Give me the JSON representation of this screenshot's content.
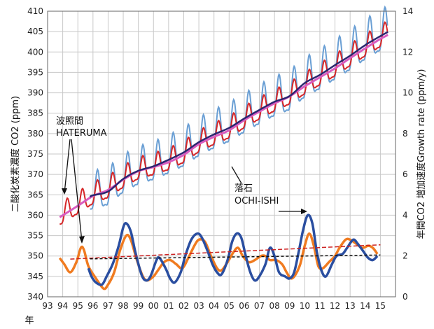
{
  "chart_data": {
    "type": "line",
    "title": "",
    "left_axis": {
      "label": "二酸化炭素濃度 CO2 (ppm)",
      "min": 340,
      "max": 410,
      "step": 5,
      "ticks": [
        "340",
        "345",
        "350",
        "355",
        "360",
        "365",
        "370",
        "375",
        "380",
        "385",
        "390",
        "395",
        "400",
        "405",
        "410"
      ]
    },
    "right_axis": {
      "label": "年間CO2 増加速度Growth rate (ppm/y)",
      "min": 0,
      "max": 14,
      "step": 2,
      "ticks": [
        "0",
        "2",
        "4",
        "6",
        "8",
        "10",
        "12",
        "14"
      ]
    },
    "x_axis": {
      "label": "年",
      "min": 1993,
      "max": 2016,
      "tick_years": [
        1993,
        1994,
        1995,
        1996,
        1997,
        1998,
        1999,
        2000,
        2001,
        2002,
        2003,
        2004,
        2005,
        2006,
        2007,
        2008,
        2009,
        2010,
        2011,
        2012,
        2013,
        2014,
        2015
      ],
      "tick_labels": [
        "93",
        "94",
        "95",
        "96",
        "97",
        "98",
        "99",
        "00",
        "01",
        "02",
        "03",
        "04",
        "05",
        "06",
        "07",
        "08",
        "09",
        "10",
        "11",
        "12",
        "13",
        "14",
        "15"
      ]
    },
    "grid": true,
    "colors": {
      "hateruma_monthly": "#d62728",
      "hateruma_trend": "#d85cc0",
      "ochiishi_monthly": "#6a9fd4",
      "ochiishi_trend": "#2b2670",
      "hateruma_growth": "#f07b20",
      "ochiishi_growth": "#2a4ea0",
      "trend_hateruma": "#cc2222",
      "trend_ochiishi": "#111111"
    },
    "annotations": [
      {
        "id": "hateruma",
        "lines": [
          "波照間",
          "HATERUMA"
        ]
      },
      {
        "id": "ochiishi",
        "lines": [
          "落石",
          "OCHI-ISHI"
        ]
      }
    ],
    "series": [
      {
        "name": "HATERUMA monthly CO2",
        "axis": "left",
        "color": "#d62728",
        "trend_points": [
          [
            1993.8,
            359.5
          ],
          [
            1995,
            362.3
          ],
          [
            1996,
            364.7
          ],
          [
            1997,
            366.2
          ],
          [
            1998,
            368.7
          ],
          [
            1999,
            370.8
          ],
          [
            2000,
            371.8
          ],
          [
            2001,
            373.0
          ],
          [
            2002,
            374.8
          ],
          [
            2003,
            377.4
          ],
          [
            2004,
            379.2
          ],
          [
            2005,
            380.8
          ],
          [
            2006,
            383.3
          ],
          [
            2007,
            385.4
          ],
          [
            2008,
            387.4
          ],
          [
            2009,
            389.1
          ],
          [
            2010,
            391.6
          ],
          [
            2011,
            393.8
          ],
          [
            2012,
            396.0
          ],
          [
            2013,
            398.5
          ],
          [
            2014,
            400.9
          ],
          [
            2015,
            403.2
          ],
          [
            2015.5,
            404.2
          ]
        ],
        "seasonal_amplitude": [
          [
            1993.8,
            3.5
          ],
          [
            2015.5,
            3.5
          ]
        ],
        "peak_phase": 0.3
      },
      {
        "name": "HATERUMA trend",
        "axis": "left",
        "color": "#d85cc0",
        "points": [
          [
            1993.8,
            359.5
          ],
          [
            1995,
            362.3
          ],
          [
            1996,
            364.7
          ],
          [
            1997,
            366.2
          ],
          [
            1998,
            368.7
          ],
          [
            1999,
            370.8
          ],
          [
            2000,
            371.8
          ],
          [
            2001,
            373.0
          ],
          [
            2002,
            374.8
          ],
          [
            2003,
            377.4
          ],
          [
            2004,
            379.2
          ],
          [
            2005,
            380.8
          ],
          [
            2006,
            383.3
          ],
          [
            2007,
            385.4
          ],
          [
            2008,
            387.4
          ],
          [
            2009,
            389.1
          ],
          [
            2010,
            391.6
          ],
          [
            2011,
            393.8
          ],
          [
            2012,
            396.0
          ],
          [
            2013,
            398.5
          ],
          [
            2014,
            400.9
          ],
          [
            2015,
            403.2
          ],
          [
            2015.5,
            404.2
          ]
        ]
      },
      {
        "name": "OCHI-ISHI monthly CO2",
        "axis": "left",
        "color": "#6a9fd4",
        "trend_points": [
          [
            1995.8,
            364.5
          ],
          [
            1996,
            364.9
          ],
          [
            1997,
            365.8
          ],
          [
            1998,
            368.9
          ],
          [
            1999,
            370.9
          ],
          [
            2000,
            372.0
          ],
          [
            2001,
            373.6
          ],
          [
            2002,
            375.4
          ],
          [
            2003,
            377.9
          ],
          [
            2004,
            379.8
          ],
          [
            2005,
            381.4
          ],
          [
            2006,
            383.7
          ],
          [
            2007,
            385.8
          ],
          [
            2008,
            387.8
          ],
          [
            2009,
            389.2
          ],
          [
            2010,
            392.4
          ],
          [
            2011,
            394.4
          ],
          [
            2012,
            396.8
          ],
          [
            2013,
            399.1
          ],
          [
            2014,
            401.7
          ],
          [
            2015,
            403.9
          ],
          [
            2015.5,
            404.9
          ]
        ],
        "seasonal_amplitude": [
          [
            1995.8,
            6.0
          ],
          [
            2015.5,
            6.5
          ]
        ],
        "peak_phase": 0.3
      },
      {
        "name": "OCHI-ISHI trend",
        "axis": "left",
        "color": "#2b2670",
        "points": [
          [
            1995.8,
            364.5
          ],
          [
            1996,
            364.9
          ],
          [
            1997,
            365.8
          ],
          [
            1998,
            368.9
          ],
          [
            1999,
            370.9
          ],
          [
            2000,
            372.0
          ],
          [
            2001,
            373.6
          ],
          [
            2002,
            375.4
          ],
          [
            2003,
            377.9
          ],
          [
            2004,
            379.8
          ],
          [
            2005,
            381.4
          ],
          [
            2006,
            383.7
          ],
          [
            2007,
            385.8
          ],
          [
            2008,
            387.8
          ],
          [
            2009,
            389.2
          ],
          [
            2010,
            392.4
          ],
          [
            2011,
            394.4
          ],
          [
            2012,
            396.8
          ],
          [
            2013,
            399.1
          ],
          [
            2014,
            401.7
          ],
          [
            2015,
            403.9
          ],
          [
            2015.5,
            404.9
          ]
        ]
      },
      {
        "name": "HATERUMA growth rate",
        "axis": "right",
        "color": "#f07b20",
        "points": [
          [
            1993.8,
            1.9
          ],
          [
            1994.1,
            1.6
          ],
          [
            1994.5,
            1.2
          ],
          [
            1994.9,
            1.7
          ],
          [
            1995.2,
            2.4
          ],
          [
            1995.4,
            2.3
          ],
          [
            1995.7,
            1.5
          ],
          [
            1996.2,
            0.9
          ],
          [
            1996.7,
            0.4
          ],
          [
            1997.0,
            0.6
          ],
          [
            1997.4,
            1.2
          ],
          [
            1997.8,
            2.3
          ],
          [
            1998.2,
            3.0
          ],
          [
            1998.5,
            2.8
          ],
          [
            1998.9,
            1.8
          ],
          [
            1999.3,
            1.0
          ],
          [
            1999.6,
            0.8
          ],
          [
            2000.0,
            1.0
          ],
          [
            2000.3,
            1.3
          ],
          [
            2000.7,
            1.7
          ],
          [
            2001.1,
            1.8
          ],
          [
            2001.5,
            1.6
          ],
          [
            2001.9,
            1.4
          ],
          [
            2002.3,
            1.9
          ],
          [
            2002.7,
            2.5
          ],
          [
            2003.0,
            2.8
          ],
          [
            2003.4,
            2.7
          ],
          [
            2003.8,
            2.0
          ],
          [
            2004.2,
            1.4
          ],
          [
            2004.5,
            1.3
          ],
          [
            2004.9,
            1.7
          ],
          [
            2005.3,
            2.2
          ],
          [
            2005.6,
            2.4
          ],
          [
            2005.9,
            2.0
          ],
          [
            2006.3,
            1.7
          ],
          [
            2006.7,
            1.8
          ],
          [
            2007.1,
            2.0
          ],
          [
            2007.4,
            2.0
          ],
          [
            2007.7,
            1.8
          ],
          [
            2008.1,
            1.8
          ],
          [
            2008.5,
            1.6
          ],
          [
            2008.8,
            1.2
          ],
          [
            2009.1,
            0.9
          ],
          [
            2009.4,
            1.1
          ],
          [
            2009.7,
            1.6
          ],
          [
            2010.0,
            2.5
          ],
          [
            2010.3,
            3.1
          ],
          [
            2010.6,
            2.5
          ],
          [
            2010.9,
            1.5
          ],
          [
            2011.2,
            1.4
          ],
          [
            2011.6,
            1.7
          ],
          [
            2012.0,
            2.0
          ],
          [
            2012.3,
            2.4
          ],
          [
            2012.7,
            2.8
          ],
          [
            2013.0,
            2.8
          ],
          [
            2013.4,
            2.6
          ],
          [
            2013.8,
            2.4
          ],
          [
            2014.2,
            2.5
          ],
          [
            2014.5,
            2.4
          ],
          [
            2014.8,
            2.1
          ]
        ]
      },
      {
        "name": "OCHI-ISHI growth rate",
        "axis": "right",
        "color": "#2a4ea0",
        "points": [
          [
            1995.7,
            1.4
          ],
          [
            1995.9,
            1.0
          ],
          [
            1996.2,
            0.7
          ],
          [
            1996.6,
            0.6
          ],
          [
            1996.9,
            1.0
          ],
          [
            1997.3,
            1.6
          ],
          [
            1997.7,
            2.5
          ],
          [
            1998.0,
            3.4
          ],
          [
            1998.2,
            3.6
          ],
          [
            1998.5,
            3.2
          ],
          [
            1998.8,
            2.2
          ],
          [
            1999.2,
            1.1
          ],
          [
            1999.5,
            0.8
          ],
          [
            1999.8,
            1.0
          ],
          [
            2000.2,
            1.8
          ],
          [
            2000.4,
            1.9
          ],
          [
            2000.8,
            1.4
          ],
          [
            2001.1,
            0.9
          ],
          [
            2001.4,
            0.7
          ],
          [
            2001.8,
            1.2
          ],
          [
            2002.1,
            2.0
          ],
          [
            2002.5,
            2.8
          ],
          [
            2002.9,
            3.1
          ],
          [
            2003.2,
            2.9
          ],
          [
            2003.6,
            2.2
          ],
          [
            2003.9,
            1.6
          ],
          [
            2004.2,
            1.2
          ],
          [
            2004.5,
            1.1
          ],
          [
            2004.9,
            1.8
          ],
          [
            2005.2,
            2.7
          ],
          [
            2005.5,
            3.1
          ],
          [
            2005.8,
            2.9
          ],
          [
            2006.1,
            2.0
          ],
          [
            2006.4,
            1.2
          ],
          [
            2006.7,
            0.8
          ],
          [
            2007.0,
            1.0
          ],
          [
            2007.4,
            1.6
          ],
          [
            2007.7,
            2.4
          ],
          [
            2008.0,
            2.0
          ],
          [
            2008.3,
            1.2
          ],
          [
            2008.7,
            1.0
          ],
          [
            2009.0,
            0.9
          ],
          [
            2009.3,
            1.2
          ],
          [
            2009.6,
            2.2
          ],
          [
            2009.9,
            3.3
          ],
          [
            2010.2,
            4.0
          ],
          [
            2010.5,
            3.6
          ],
          [
            2010.8,
            2.2
          ],
          [
            2011.1,
            1.3
          ],
          [
            2011.4,
            1.0
          ],
          [
            2011.8,
            1.6
          ],
          [
            2012.1,
            2.0
          ],
          [
            2012.5,
            2.1
          ],
          [
            2012.8,
            2.4
          ],
          [
            2013.2,
            2.8
          ],
          [
            2013.5,
            2.6
          ],
          [
            2013.9,
            2.2
          ],
          [
            2014.2,
            1.9
          ],
          [
            2014.5,
            1.8
          ],
          [
            2014.8,
            2.0
          ]
        ]
      },
      {
        "name": "HATERUMA growth linear trend",
        "axis": "right",
        "color": "#cc2222",
        "dash": true,
        "points": [
          [
            1994.5,
            1.85
          ],
          [
            2015.0,
            2.55
          ]
        ]
      },
      {
        "name": "OCHI-ISHI growth linear trend",
        "axis": "right",
        "color": "#111111",
        "dash": true,
        "points": [
          [
            1995.8,
            1.86
          ],
          [
            2015.0,
            2.05
          ]
        ]
      }
    ]
  }
}
